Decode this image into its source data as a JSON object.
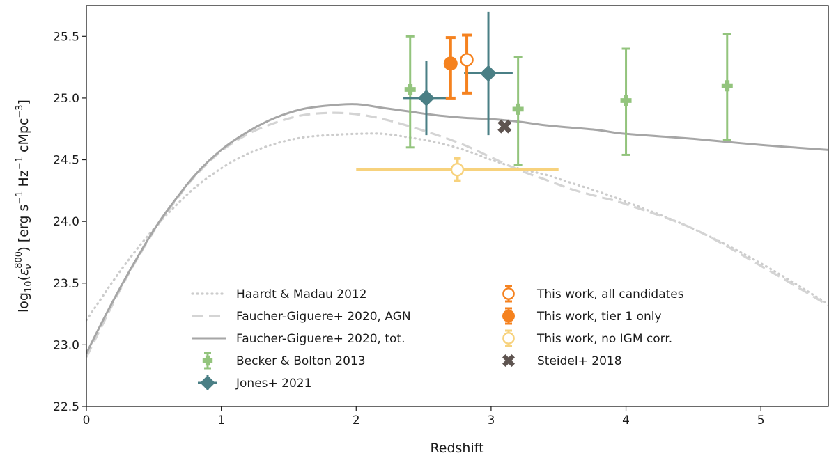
{
  "chart_data": {
    "type": "scatter",
    "title": "",
    "xlabel": "Redshift",
    "ylabel": "log10(εν800) [erg s−1 Hz−1 cMpc−3]",
    "ylabel_parts": {
      "prefix": "log",
      "sub10": "10",
      "paren_open": "(",
      "eps": "ε",
      "nu": "ν",
      "sup800": "800",
      "unit": ") [erg s",
      "m1a": "−1",
      "hz": " Hz",
      "m1b": "−1",
      "mpc": " cMpc",
      "m3": "−3",
      "close": "]"
    },
    "xlim": [
      0,
      5.5
    ],
    "ylim": [
      22.5,
      25.75
    ],
    "xticks": [
      0,
      1,
      2,
      3,
      4,
      5
    ],
    "yticks": [
      22.5,
      23.0,
      23.5,
      24.0,
      24.5,
      25.0,
      25.5
    ],
    "xtick_labels": [
      "0",
      "1",
      "2",
      "3",
      "4",
      "5"
    ],
    "ytick_labels": [
      "22.5",
      "23.0",
      "23.5",
      "24.0",
      "24.5",
      "25.0",
      "25.5"
    ],
    "legend_position": "lower-center",
    "curves": [
      {
        "name": "Haardt & Madau 2012",
        "style": "dotted",
        "color": "#cccccc",
        "x": [
          0,
          0.1,
          0.2,
          0.3,
          0.4,
          0.5,
          0.6,
          0.8,
          1.0,
          1.2,
          1.4,
          1.6,
          1.8,
          2.0,
          2.2,
          2.4,
          2.6,
          2.8,
          3.0,
          3.2,
          3.4,
          3.6,
          3.8,
          4.0,
          4.5,
          5.0,
          5.5
        ],
        "y": [
          23.2,
          23.36,
          23.52,
          23.67,
          23.81,
          23.94,
          24.06,
          24.27,
          24.43,
          24.55,
          24.63,
          24.68,
          24.7,
          24.71,
          24.71,
          24.68,
          24.64,
          24.58,
          24.5,
          24.43,
          24.38,
          24.31,
          24.24,
          24.16,
          23.94,
          23.66,
          23.33
        ]
      },
      {
        "name": "Faucher-Giguere+ 2020, AGN",
        "style": "dashed",
        "color": "#d4d4d4",
        "x": [
          0,
          0.1,
          0.2,
          0.3,
          0.4,
          0.5,
          0.6,
          0.8,
          1.0,
          1.2,
          1.4,
          1.6,
          1.8,
          2.0,
          2.2,
          2.4,
          2.6,
          2.8,
          3.0,
          3.2,
          3.4,
          3.6,
          3.8,
          4.0,
          4.5,
          5.0,
          5.5
        ],
        "y": [
          22.9,
          23.12,
          23.34,
          23.55,
          23.74,
          23.92,
          24.08,
          24.36,
          24.57,
          24.71,
          24.8,
          24.86,
          24.88,
          24.87,
          24.83,
          24.77,
          24.7,
          24.62,
          24.52,
          24.42,
          24.34,
          24.26,
          24.2,
          24.14,
          23.94,
          23.64,
          23.32
        ]
      },
      {
        "name": "Faucher-Giguere+ 2020, tot.",
        "style": "solid",
        "color": "#a6a6a6",
        "x": [
          0,
          0.1,
          0.2,
          0.3,
          0.4,
          0.5,
          0.6,
          0.8,
          1.0,
          1.2,
          1.4,
          1.6,
          1.8,
          2.0,
          2.2,
          2.4,
          2.6,
          2.8,
          3.0,
          3.2,
          3.4,
          3.6,
          3.8,
          4.0,
          4.5,
          5.0,
          5.5
        ],
        "y": [
          22.93,
          23.15,
          23.36,
          23.56,
          23.75,
          23.93,
          24.09,
          24.37,
          24.58,
          24.73,
          24.84,
          24.91,
          24.94,
          24.95,
          24.92,
          24.89,
          24.86,
          24.84,
          24.83,
          24.81,
          24.78,
          24.76,
          24.74,
          24.71,
          24.67,
          24.62,
          24.58
        ]
      }
    ],
    "points": [
      {
        "series": "Becker & Bolton 2013",
        "x": 2.4,
        "y": 25.07,
        "yerr": [
          0.47,
          0.43
        ]
      },
      {
        "series": "Becker & Bolton 2013",
        "x": 3.2,
        "y": 24.91,
        "yerr": [
          0.45,
          0.42
        ]
      },
      {
        "series": "Becker & Bolton 2013",
        "x": 4.0,
        "y": 24.98,
        "yerr": [
          0.44,
          0.42
        ]
      },
      {
        "series": "Becker & Bolton 2013",
        "x": 4.75,
        "y": 25.1,
        "yerr": [
          0.44,
          0.42
        ]
      },
      {
        "series": "Jones+ 2021",
        "x": 2.52,
        "y": 25.0,
        "xerr": [
          0.17,
          0.17
        ],
        "yerr": [
          0.3,
          0.3
        ]
      },
      {
        "series": "Jones+ 2021",
        "x": 2.98,
        "y": 25.2,
        "xerr": [
          0.18,
          0.18
        ],
        "yerr": [
          0.5,
          0.5
        ]
      },
      {
        "series": "This work, all candidates",
        "x": 2.82,
        "y": 25.31,
        "yerr": [
          0.27,
          0.2
        ]
      },
      {
        "series": "This work, tier 1 only",
        "x": 2.7,
        "y": 25.28,
        "yerr": [
          0.28,
          0.21
        ]
      },
      {
        "series": "This work, no IGM corr.",
        "x": 2.75,
        "y": 24.42,
        "xerr": [
          0.75,
          0.75
        ],
        "yerr": [
          0.09,
          0.09
        ]
      },
      {
        "series": "Steidel+ 2018",
        "x": 3.1,
        "y": 24.77
      }
    ],
    "legend": [
      {
        "label": "Haardt & Madau 2012",
        "kind": "line",
        "style": "dotted",
        "color": "#cccccc"
      },
      {
        "label": "Faucher-Giguere+ 2020, AGN",
        "kind": "line",
        "style": "dashed",
        "color": "#d4d4d4"
      },
      {
        "label": "Faucher-Giguere+ 2020, tot.",
        "kind": "line",
        "style": "solid",
        "color": "#a6a6a6"
      },
      {
        "label": "Becker & Bolton 2013",
        "kind": "marker",
        "marker": "plus",
        "color": "#93c47d"
      },
      {
        "label": "Jones+ 2021",
        "kind": "marker",
        "marker": "diamond",
        "color": "#4a7f85"
      },
      {
        "label": "This work, all candidates",
        "kind": "marker",
        "marker": "open-circle",
        "color": "#f5821f"
      },
      {
        "label": "This work, tier 1 only",
        "kind": "marker",
        "marker": "filled-circle",
        "color": "#f5821f"
      },
      {
        "label": "This work, no IGM corr.",
        "kind": "marker",
        "marker": "open-circle-light",
        "color": "#f7d27d"
      },
      {
        "label": "Steidel+ 2018",
        "kind": "marker",
        "marker": "x",
        "color": "#5e5450"
      }
    ]
  }
}
